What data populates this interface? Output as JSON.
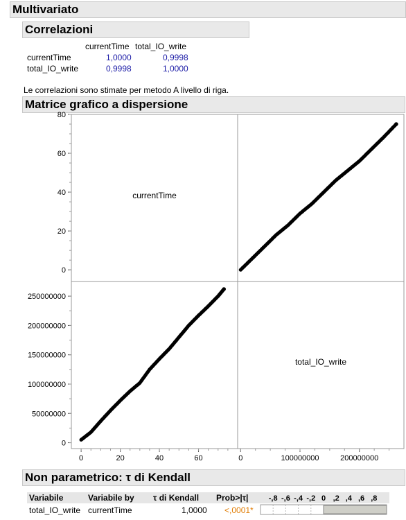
{
  "header": {
    "title": "Multivariato"
  },
  "correlations": {
    "title": "Correlazioni",
    "columns": [
      "currentTime",
      "total_IO_write"
    ],
    "rows": [
      {
        "label": "currentTime",
        "values": [
          "1,0000",
          "0,9998"
        ]
      },
      {
        "label": "total_IO_write",
        "values": [
          "0,9998",
          "1,0000"
        ]
      }
    ],
    "note": "Le correlazioni sono stimate per metodo A livello di riga."
  },
  "scatter_matrix": {
    "title": "Matrice grafico a dispersione",
    "var1_label": "currentTime",
    "var2_label": "total_IO_write"
  },
  "chart_data": [
    {
      "type": "scatter",
      "title": "",
      "xlabel": "total_IO_write",
      "ylabel": "currentTime",
      "xlim": [
        -5000000,
        275000000
      ],
      "ylim": [
        -6,
        80
      ],
      "x_ticks": [
        "0",
        "100000000",
        "200000000"
      ],
      "y_ticks": [
        "0",
        "20",
        "40",
        "60",
        "80"
      ],
      "points": [
        [
          0,
          0
        ],
        [
          20000000,
          6
        ],
        [
          40000000,
          12
        ],
        [
          60000000,
          18
        ],
        [
          80000000,
          23
        ],
        [
          100000000,
          29
        ],
        [
          120000000,
          34
        ],
        [
          140000000,
          40
        ],
        [
          160000000,
          46
        ],
        [
          180000000,
          51
        ],
        [
          200000000,
          56
        ],
        [
          220000000,
          62
        ],
        [
          240000000,
          68
        ],
        [
          262000000,
          75
        ]
      ]
    },
    {
      "type": "scatter",
      "title": "",
      "xlabel": "currentTime",
      "ylabel": "total_IO_write",
      "xlim": [
        -5,
        80
      ],
      "ylim": [
        -10000000,
        275000000
      ],
      "x_ticks": [
        "0",
        "20",
        "40",
        "60"
      ],
      "y_ticks": [
        "0",
        "50000000",
        "100000000",
        "150000000",
        "200000000",
        "250000000"
      ],
      "points": [
        [
          0,
          5000000
        ],
        [
          5,
          18000000
        ],
        [
          10,
          37000000
        ],
        [
          15,
          55000000
        ],
        [
          20,
          72000000
        ],
        [
          25,
          88000000
        ],
        [
          30,
          102000000
        ],
        [
          35,
          125000000
        ],
        [
          40,
          143000000
        ],
        [
          45,
          160000000
        ],
        [
          50,
          180000000
        ],
        [
          55,
          200000000
        ],
        [
          60,
          217000000
        ],
        [
          65,
          233000000
        ],
        [
          70,
          250000000
        ],
        [
          73,
          262000000
        ]
      ]
    }
  ],
  "kendall": {
    "title": "Non parametrico: τ di Kendall",
    "headers": [
      "Variabile",
      "Variabile by",
      "τ di Kendall",
      "Prob>|τ|"
    ],
    "bar_ticks": [
      "-,8",
      "-,6",
      "-,4",
      "-,2",
      "0",
      ",2",
      ",4",
      ",6",
      ",8"
    ],
    "row": {
      "variable": "total_IO_write",
      "by": "currentTime",
      "tau": "1,0000",
      "prob": "<,0001*"
    },
    "tau_value": 1.0,
    "prob_color": "#e07b00"
  }
}
